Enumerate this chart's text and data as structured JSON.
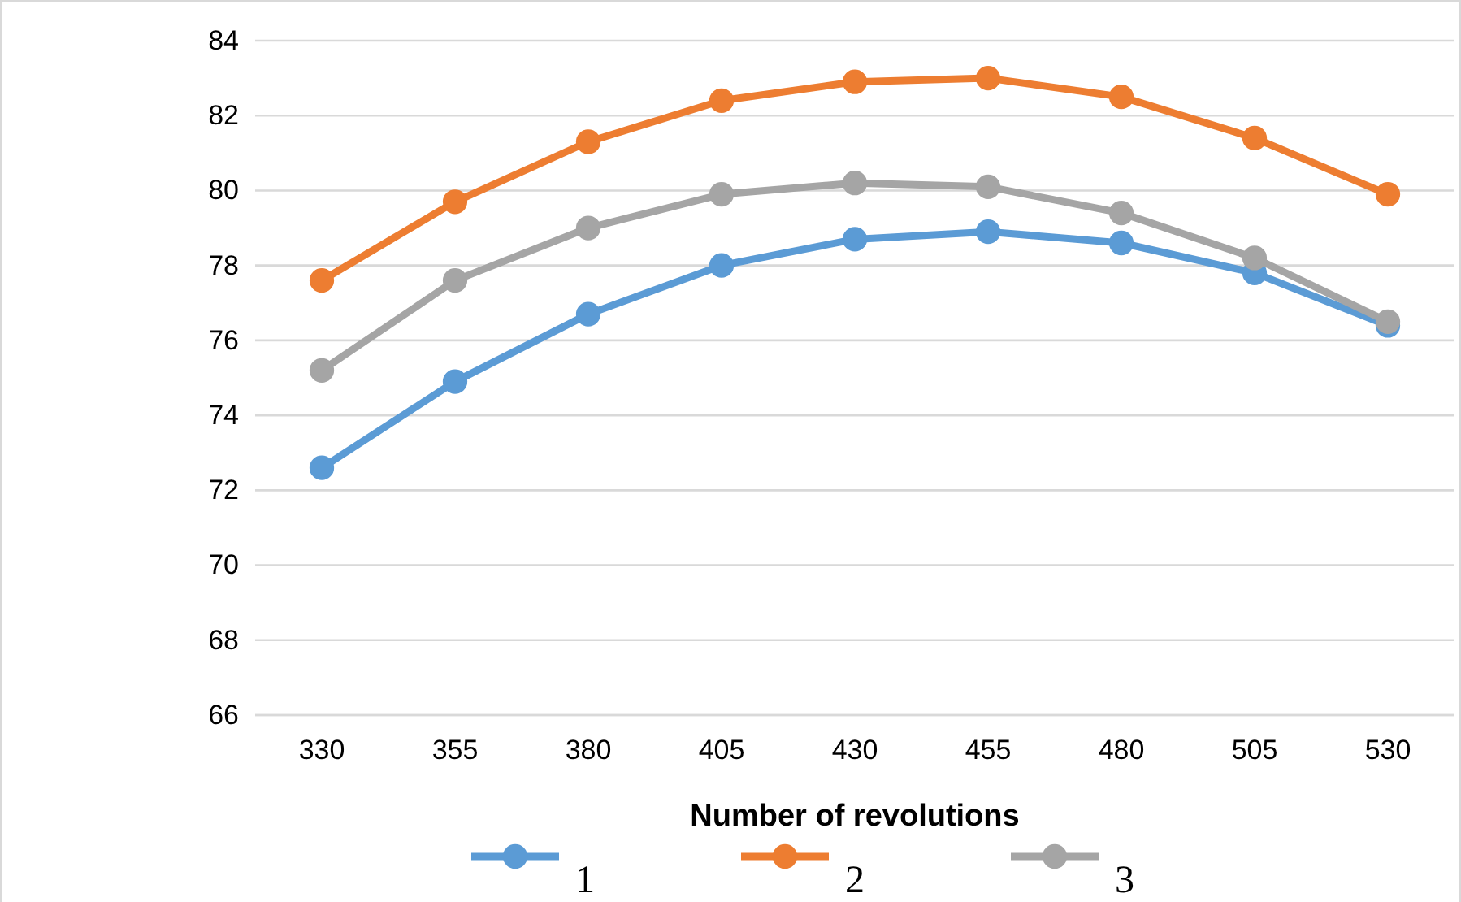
{
  "chart_data": {
    "type": "line",
    "xlabel": "Number of revolutions",
    "categories": [
      "330",
      "355",
      "380",
      "405",
      "430",
      "455",
      "480",
      "505",
      "530"
    ],
    "series": [
      {
        "name": "1",
        "color": "#5b9bd5",
        "values": [
          72.6,
          74.9,
          76.7,
          78.0,
          78.7,
          78.9,
          78.6,
          77.8,
          76.4
        ]
      },
      {
        "name": "2",
        "color": "#ed7d31",
        "values": [
          77.6,
          79.7,
          81.3,
          82.4,
          82.9,
          83.0,
          82.5,
          81.4,
          79.9
        ]
      },
      {
        "name": "3",
        "color": "#a5a5a5",
        "values": [
          75.2,
          77.6,
          79.0,
          79.9,
          80.2,
          80.1,
          79.4,
          78.2,
          76.5
        ]
      }
    ],
    "ylim": [
      66,
      84
    ],
    "yticks": [
      66,
      68,
      70,
      72,
      74,
      76,
      78,
      80,
      82,
      84
    ],
    "grid": "y",
    "legend": "bottom",
    "marker": "circle",
    "line_style": "solid"
  }
}
